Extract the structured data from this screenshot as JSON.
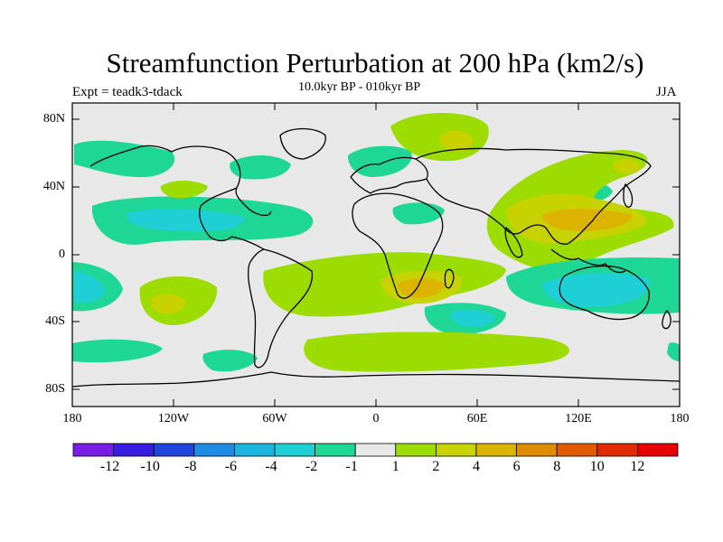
{
  "header": {
    "title": "Streamfunction Perturbation at 200 hPa (km2/s)",
    "expt": "Expt = teadk3-tdack",
    "period": "10.0kyr BP - 010kyr BP",
    "season": "JJA"
  },
  "axes": {
    "lat_ticks": [
      "80N",
      "40N",
      "0",
      "40S",
      "80S"
    ],
    "lon_ticks": [
      "180",
      "120W",
      "60W",
      "0",
      "60E",
      "120E",
      "180"
    ]
  },
  "colorbar": {
    "labels": [
      "-12",
      "-10",
      "-8",
      "-6",
      "-4",
      "-2",
      "-1",
      "1",
      "2",
      "4",
      "6",
      "8",
      "10",
      "12"
    ],
    "colors": [
      "#7a1ee6",
      "#3a1ee0",
      "#1e46d8",
      "#1e8ce6",
      "#1eb4e0",
      "#1ecfd6",
      "#1ed696",
      "#e8e8e8",
      "#9cdc00",
      "#c8d200",
      "#dcb400",
      "#e08c00",
      "#e05a00",
      "#e02a00",
      "#e60000"
    ]
  },
  "colors": {
    "neutral": "#e8e8e8",
    "green": "#9cdc00",
    "yellow": "#c8d200",
    "gold": "#dcb400",
    "teal": "#1ed696",
    "cyan": "#1ecfd6",
    "blue": "#1eb4e0"
  }
}
